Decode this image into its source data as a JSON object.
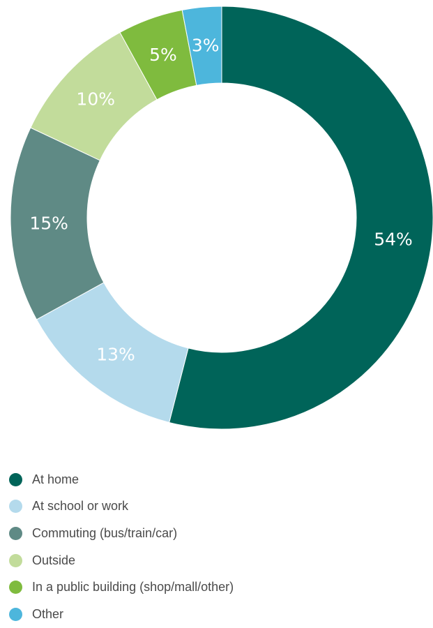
{
  "chart_data": {
    "type": "pie",
    "categories": [
      "At home",
      "At school or work",
      "Commuting (bus/train/car)",
      "Outside",
      "In a public building (shop/mall/other)",
      "Other"
    ],
    "values": [
      54,
      13,
      15,
      10,
      5,
      3
    ],
    "value_labels": [
      "54%",
      "13%",
      "15%",
      "10%",
      "5%",
      "3%"
    ],
    "colors": [
      "#006459",
      "#b4daec",
      "#5f8a85",
      "#c2dc9b",
      "#7fbb3e",
      "#4db6dc"
    ],
    "donut": true,
    "start": "top",
    "direction": "clockwise",
    "legend_position": "bottom-left"
  }
}
